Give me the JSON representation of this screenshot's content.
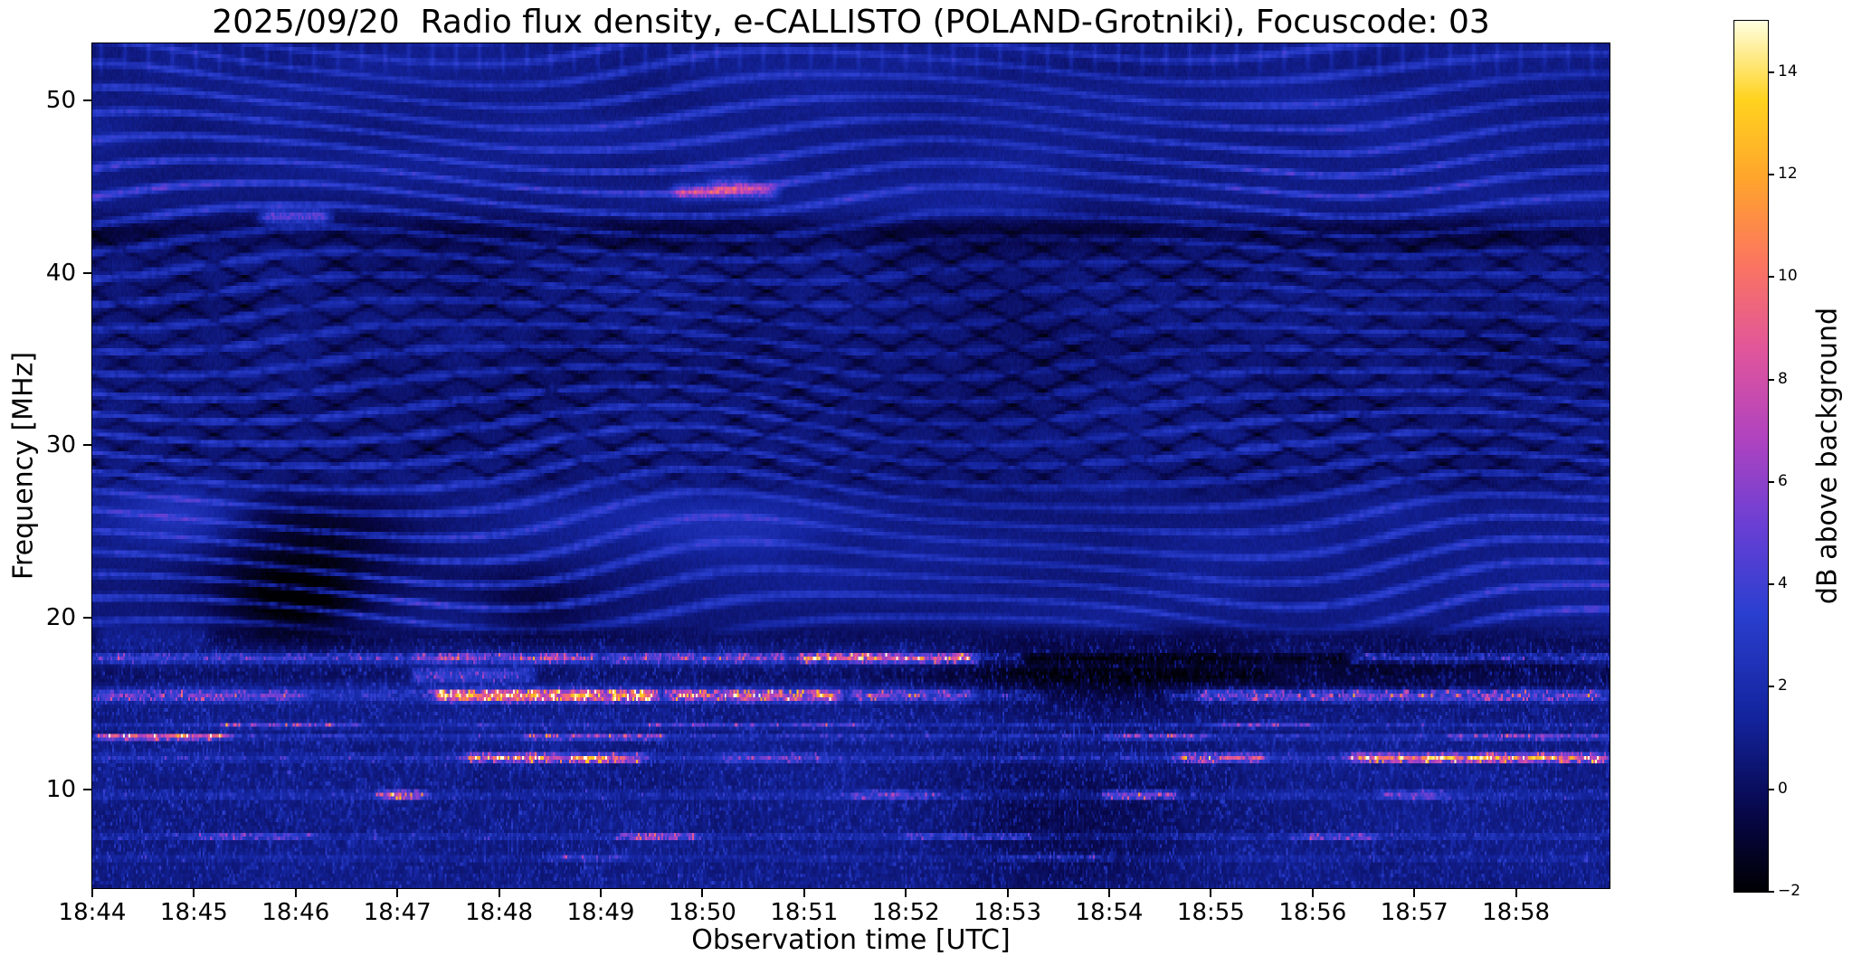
{
  "figure": {
    "background": "#ffffff"
  },
  "chart_data": {
    "type": "heatmap",
    "title": "2025/09/20  Radio flux density, e-CALLISTO (POLAND-Grotniki), Focuscode: 03",
    "xlabel": "Observation time [UTC]",
    "ylabel": "Frequency [MHz]",
    "colorbar_label": "dB above background",
    "x_ticks": [
      "18:44",
      "18:45",
      "18:46",
      "18:47",
      "18:48",
      "18:49",
      "18:50",
      "18:51",
      "18:52",
      "18:53",
      "18:54",
      "18:55",
      "18:56",
      "18:57",
      "18:58"
    ],
    "x_start_utc": "18:44",
    "x_span_minutes": 14.92,
    "y_ticks": [
      10,
      20,
      30,
      40,
      50
    ],
    "y_range_mhz": [
      4.3,
      53.3
    ],
    "value_range_db": [
      -2,
      15
    ],
    "colorbar_ticks": [
      "−2",
      "0",
      "2",
      "4",
      "6",
      "8",
      "10",
      "12",
      "14"
    ],
    "colorbar_tick_values": [
      -2,
      0,
      2,
      4,
      6,
      8,
      10,
      12,
      14
    ],
    "colormap": [
      [
        0.0,
        "#000004"
      ],
      [
        0.09,
        "#07074a"
      ],
      [
        0.2,
        "#14249e"
      ],
      [
        0.32,
        "#2b3fd0"
      ],
      [
        0.42,
        "#6a3fd4"
      ],
      [
        0.52,
        "#b043c0"
      ],
      [
        0.62,
        "#e0559c"
      ],
      [
        0.72,
        "#fb7561"
      ],
      [
        0.82,
        "#ffa52c"
      ],
      [
        0.91,
        "#ffd31f"
      ],
      [
        1.0,
        "#ffffe0"
      ]
    ],
    "features": {
      "bands": [
        {
          "lo": 17.3,
          "hi": 18.0,
          "base": 1.4,
          "segs": [
            [
              0,
              3.1,
              1.6
            ],
            [
              3.1,
              5.0,
              3.5
            ],
            [
              5.0,
              6.9,
              2.5
            ],
            [
              6.9,
              8.75,
              7.5
            ],
            [
              9.1,
              12.4,
              -2.6
            ],
            [
              12.4,
              14.92,
              1.2
            ]
          ]
        },
        {
          "lo": 15.0,
          "hi": 15.95,
          "base": 1.6,
          "segs": [
            [
              0,
              2.1,
              2.2
            ],
            [
              3.3,
              5.6,
              8.5
            ],
            [
              5.6,
              7.4,
              6.0
            ],
            [
              7.4,
              8.7,
              3.0
            ],
            [
              9.3,
              10.6,
              -1.5
            ],
            [
              10.8,
              14.92,
              2.8
            ]
          ]
        },
        {
          "lo": 13.55,
          "hi": 14.0,
          "base": 1.1,
          "segs": [
            [
              1.2,
              2.7,
              2.8
            ],
            [
              5.4,
              7.6,
              2.0
            ],
            [
              10.9,
              12.1,
              2.2
            ]
          ]
        },
        {
          "lo": 12.85,
          "hi": 13.35,
          "base": 1.3,
          "segs": [
            [
              0,
              1.4,
              6.5
            ],
            [
              4.2,
              5.7,
              3.2
            ],
            [
              9.9,
              11.0,
              2.6
            ],
            [
              13.3,
              14.92,
              2.4
            ]
          ]
        },
        {
          "lo": 11.55,
          "hi": 12.15,
          "base": 1.4,
          "segs": [
            [
              3.6,
              5.5,
              7.5
            ],
            [
              6.1,
              7.3,
              2.2
            ],
            [
              10.6,
              11.6,
              5.5
            ],
            [
              12.3,
              14.92,
              9.5
            ]
          ]
        },
        {
          "lo": 9.3,
          "hi": 10.05,
          "base": 1.0,
          "segs": [
            [
              2.75,
              3.35,
              4.5
            ],
            [
              7.4,
              8.4,
              2.6
            ],
            [
              9.9,
              10.7,
              4.5
            ],
            [
              12.6,
              13.4,
              2.6
            ]
          ]
        },
        {
          "lo": 7.0,
          "hi": 7.55,
          "base": 1.0,
          "segs": [
            [
              0.9,
              2.3,
              2.2
            ],
            [
              5.1,
              6.0,
              4.0
            ],
            [
              7.9,
              9.3,
              1.8
            ],
            [
              11.7,
              12.7,
              2.6
            ]
          ]
        },
        {
          "lo": 5.8,
          "hi": 6.35,
          "base": 0.7,
          "segs": [
            [
              4.4,
              5.3,
              1.8
            ],
            [
              8.9,
              10.1,
              1.4
            ]
          ]
        },
        {
          "lo": 16.05,
          "hi": 17.25,
          "base": -0.7,
          "segs": [
            [
              3.1,
              4.4,
              3.4
            ],
            [
              11.5,
              14.92,
              0.9
            ]
          ]
        },
        {
          "lo": 18.1,
          "hi": 19.6,
          "base": -0.8,
          "segs": [
            [
              0,
              1.2,
              1.2
            ]
          ]
        }
      ],
      "transients": [
        [
          1.7,
          2.3,
          43.25,
          0.28,
          4.5
        ],
        [
          5.75,
          6.7,
          44.7,
          0.3,
          4.5
        ],
        [
          6.1,
          6.45,
          45.2,
          0.25,
          2.5
        ]
      ],
      "blobs": [
        [
          2.1,
          23.3,
          0.75,
          2.6,
          -2.6
        ],
        [
          2.0,
          20.6,
          0.5,
          1.2,
          -1.8
        ],
        [
          4.35,
          21.0,
          0.45,
          1.6,
          -1.6
        ],
        [
          9.7,
          8.0,
          0.9,
          3.2,
          -1.2
        ],
        [
          9.9,
          16.6,
          1.1,
          1.3,
          -2.0
        ],
        [
          13.1,
          16.9,
          1.5,
          1.0,
          -1.8
        ],
        [
          0.9,
          25.8,
          0.5,
          1.4,
          1.8
        ],
        [
          6.3,
          25.0,
          0.7,
          1.2,
          1.2
        ]
      ]
    }
  }
}
